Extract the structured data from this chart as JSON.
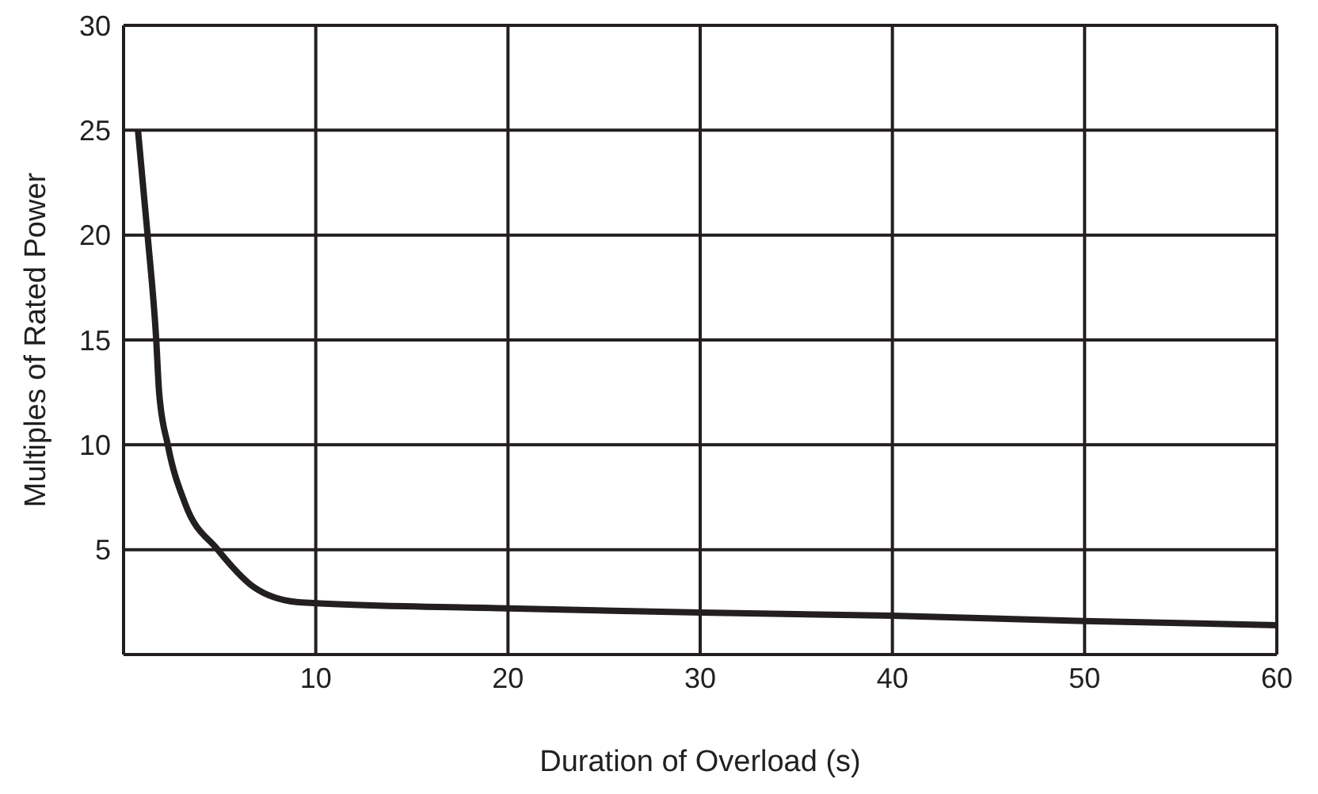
{
  "chart_data": {
    "type": "line",
    "xlabel": "Duration of Overload (s)",
    "ylabel": "Multiples of Rated Power",
    "x": [
      0.75,
      1.25,
      1.7,
      1.85,
      2.3,
      3.2,
      4.9,
      6.8,
      9,
      10,
      20,
      30,
      40,
      50,
      60
    ],
    "series": [
      {
        "color": "#231f20",
        "values": [
          25,
          20,
          15,
          12.5,
          10,
          7.2,
          5,
          3.2,
          2.5,
          2.45,
          2.2,
          2,
          1.85,
          1.6,
          1.4
        ]
      }
    ],
    "xlim": [
      0,
      60
    ],
    "xticks": [
      10,
      20,
      30,
      40,
      50,
      60
    ],
    "ylim": [
      0,
      30
    ],
    "yticks": [
      5,
      10,
      15,
      20,
      25,
      30
    ],
    "grid": true,
    "marker": "none",
    "line_style": "solid"
  }
}
